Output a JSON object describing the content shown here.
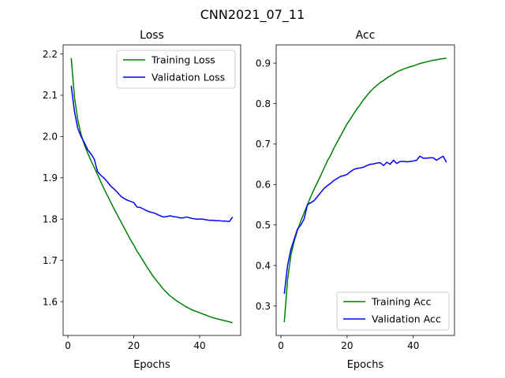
{
  "suptitle": "CNN2021_07_11",
  "chart_data": [
    {
      "type": "line",
      "title": "Loss",
      "xlabel": "Epochs",
      "ylabel": "",
      "xlim": [
        -1.45,
        52.45
      ],
      "ylim": [
        1.518,
        2.222
      ],
      "xticks": [
        0,
        20,
        40
      ],
      "yticks": [
        1.6,
        1.7,
        1.8,
        1.9,
        2.0,
        2.1,
        2.2
      ],
      "ytick_labels": [
        "1.6",
        "1.7",
        "1.8",
        "1.9",
        "2.0",
        "2.1",
        "2.2"
      ],
      "legend_position": "upper right",
      "grid": false,
      "x": [
        1,
        2,
        3,
        4,
        5,
        6,
        7,
        8,
        9,
        10,
        11,
        12,
        13,
        14,
        15,
        16,
        17,
        18,
        19,
        20,
        21,
        22,
        23,
        24,
        25,
        26,
        27,
        28,
        29,
        30,
        31,
        32,
        33,
        34,
        35,
        36,
        37,
        38,
        39,
        40,
        41,
        42,
        43,
        44,
        45,
        46,
        47,
        48,
        49,
        50
      ],
      "series": [
        {
          "name": "Training Loss",
          "color": "#008000",
          "values": [
            2.19,
            2.095,
            2.04,
            2.005,
            1.98,
            1.96,
            1.942,
            1.925,
            1.908,
            1.89,
            1.873,
            1.857,
            1.841,
            1.825,
            1.81,
            1.795,
            1.78,
            1.765,
            1.75,
            1.737,
            1.722,
            1.71,
            1.697,
            1.684,
            1.672,
            1.66,
            1.65,
            1.64,
            1.63,
            1.622,
            1.614,
            1.608,
            1.602,
            1.597,
            1.592,
            1.587,
            1.583,
            1.579,
            1.576,
            1.573,
            1.57,
            1.567,
            1.564,
            1.561,
            1.559,
            1.557,
            1.555,
            1.553,
            1.551,
            1.549
          ]
        },
        {
          "name": "Validation Loss",
          "color": "#0000ff",
          "values": [
            2.123,
            2.06,
            2.02,
            2.0,
            1.985,
            1.968,
            1.958,
            1.945,
            1.915,
            1.906,
            1.899,
            1.89,
            1.88,
            1.873,
            1.865,
            1.856,
            1.85,
            1.846,
            1.843,
            1.84,
            1.829,
            1.828,
            1.824,
            1.82,
            1.817,
            1.815,
            1.812,
            1.808,
            1.805,
            1.806,
            1.808,
            1.806,
            1.805,
            1.803,
            1.803,
            1.805,
            1.803,
            1.801,
            1.8,
            1.8,
            1.8,
            1.798,
            1.797,
            1.797,
            1.796,
            1.796,
            1.795,
            1.795,
            1.794,
            1.805
          ]
        }
      ]
    },
    {
      "type": "line",
      "title": "Acc",
      "xlabel": "Epochs",
      "ylabel": "",
      "xlim": [
        -1.45,
        52.45
      ],
      "ylim": [
        0.227,
        0.945
      ],
      "xticks": [
        0,
        20,
        40
      ],
      "yticks": [
        0.3,
        0.4,
        0.5,
        0.6,
        0.7,
        0.8,
        0.9
      ],
      "ytick_labels": [
        "0.3",
        "0.4",
        "0.5",
        "0.6",
        "0.7",
        "0.8",
        "0.9"
      ],
      "legend_position": "lower right",
      "grid": false,
      "x": [
        1,
        2,
        3,
        4,
        5,
        6,
        7,
        8,
        9,
        10,
        11,
        12,
        13,
        14,
        15,
        16,
        17,
        18,
        19,
        20,
        21,
        22,
        23,
        24,
        25,
        26,
        27,
        28,
        29,
        30,
        31,
        32,
        33,
        34,
        35,
        36,
        37,
        38,
        39,
        40,
        41,
        42,
        43,
        44,
        45,
        46,
        47,
        48,
        49,
        50
      ],
      "series": [
        {
          "name": "Training Acc",
          "color": "#008000",
          "values": [
            0.26,
            0.365,
            0.425,
            0.46,
            0.487,
            0.51,
            0.53,
            0.55,
            0.57,
            0.588,
            0.605,
            0.622,
            0.64,
            0.658,
            0.672,
            0.69,
            0.705,
            0.72,
            0.735,
            0.75,
            0.762,
            0.775,
            0.787,
            0.798,
            0.81,
            0.82,
            0.83,
            0.838,
            0.845,
            0.852,
            0.857,
            0.863,
            0.868,
            0.873,
            0.878,
            0.882,
            0.885,
            0.888,
            0.891,
            0.893,
            0.896,
            0.899,
            0.901,
            0.903,
            0.905,
            0.907,
            0.908,
            0.91,
            0.911,
            0.912
          ]
        },
        {
          "name": "Validation Acc",
          "color": "#0000ff",
          "values": [
            0.33,
            0.4,
            0.44,
            0.465,
            0.49,
            0.5,
            0.515,
            0.55,
            0.555,
            0.56,
            0.57,
            0.58,
            0.59,
            0.597,
            0.603,
            0.61,
            0.615,
            0.62,
            0.622,
            0.625,
            0.632,
            0.637,
            0.64,
            0.641,
            0.643,
            0.647,
            0.65,
            0.651,
            0.653,
            0.654,
            0.647,
            0.655,
            0.65,
            0.66,
            0.652,
            0.657,
            0.657,
            0.656,
            0.657,
            0.658,
            0.66,
            0.67,
            0.665,
            0.665,
            0.666,
            0.666,
            0.66,
            0.665,
            0.67,
            0.655
          ]
        }
      ]
    }
  ]
}
